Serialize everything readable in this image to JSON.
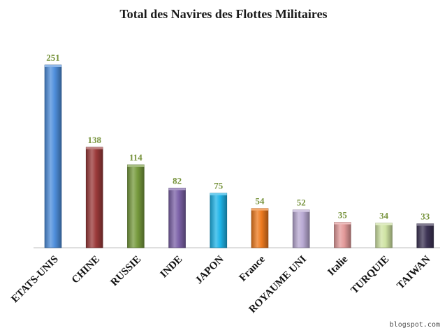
{
  "chart_data": {
    "type": "bar",
    "title": "Total des Navires des Flottes Militaires",
    "xlabel": "",
    "ylabel": "",
    "ylim": [
      0,
      260
    ],
    "grid": false,
    "legend": "none",
    "categories": [
      "ETATS-UNIS",
      "CHINE",
      "RUSSIE",
      "INDE",
      "JAPON",
      "France",
      "ROYAUME UNI",
      "Italie",
      "TURQUIE",
      "TAIWAN"
    ],
    "values": [
      251,
      138,
      114,
      82,
      75,
      54,
      52,
      35,
      34,
      33
    ],
    "colors": [
      "#4f8fdc",
      "#9b3a3a",
      "#779b3d",
      "#7c62a8",
      "#1fb4e8",
      "#ee7a1e",
      "#b9a9d3",
      "#e39a9a",
      "#cfe3a3",
      "#3e3556"
    ],
    "value_label_color": "#77933c"
  },
  "watermark": "blogspot.com"
}
